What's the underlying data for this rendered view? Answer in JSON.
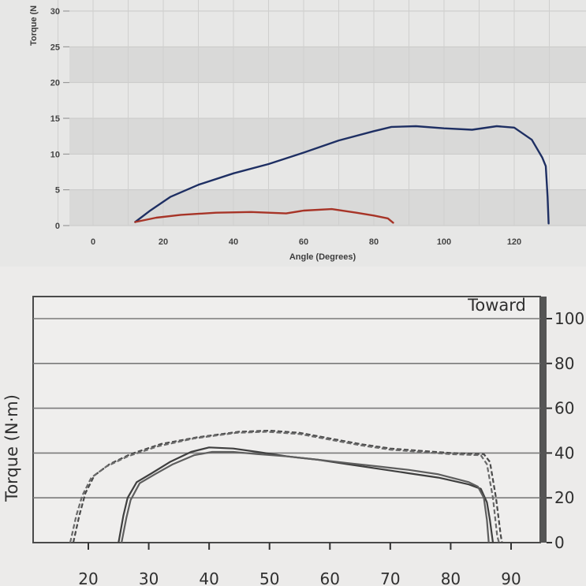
{
  "chart_data": [
    {
      "type": "line",
      "title": "",
      "xlabel": "Angle (Degrees)",
      "ylabel": "Torque (N",
      "xlim": [
        -10,
        132
      ],
      "ylim": [
        0,
        30
      ],
      "x_ticks": [
        "0",
        "20",
        "40",
        "60",
        "80",
        "100",
        "120"
      ],
      "y_ticks": [
        "0",
        "5",
        "10",
        "15",
        "20",
        "25",
        "30"
      ],
      "grid": true,
      "series": [
        {
          "color": "#1e2f63",
          "points": [
            [
              12,
              0.5
            ],
            [
              16,
              2
            ],
            [
              22,
              4
            ],
            [
              30,
              5.7
            ],
            [
              40,
              7.3
            ],
            [
              50,
              8.6
            ],
            [
              60,
              10.2
            ],
            [
              70,
              11.9
            ],
            [
              80,
              13.2
            ],
            [
              85,
              13.8
            ],
            [
              92,
              13.9
            ],
            [
              100,
              13.6
            ],
            [
              108,
              13.4
            ],
            [
              115,
              13.9
            ],
            [
              120,
              13.7
            ],
            [
              125,
              12
            ],
            [
              128,
              9.5
            ],
            [
              129,
              8.3
            ],
            [
              129.5,
              4
            ],
            [
              129.8,
              0.3
            ]
          ]
        },
        {
          "color": "#a73427",
          "points": [
            [
              12,
              0.5
            ],
            [
              18,
              1.1
            ],
            [
              25,
              1.5
            ],
            [
              35,
              1.8
            ],
            [
              45,
              1.9
            ],
            [
              55,
              1.7
            ],
            [
              60,
              2.1
            ],
            [
              68,
              2.3
            ],
            [
              75,
              1.8
            ],
            [
              80,
              1.4
            ],
            [
              84,
              1.0
            ],
            [
              85.5,
              0.4
            ]
          ]
        }
      ]
    },
    {
      "type": "line",
      "title": "",
      "xlabel": "",
      "ylabel": "Torque (N·m)",
      "xlim": [
        12.5,
        94
      ],
      "ylim": [
        0,
        103
      ],
      "x_ticks": [
        "20",
        "30",
        "40",
        "50",
        "60",
        "70",
        "80",
        "90"
      ],
      "y_ticks": [
        "0",
        "20",
        "40",
        "60",
        "80",
        "100"
      ],
      "annotation": "Toward",
      "grid": true,
      "series": [
        {
          "style": "dashed",
          "color": "#4a4a4a",
          "points": [
            [
              17.5,
              0
            ],
            [
              18.5,
              12
            ],
            [
              19.5,
              22
            ],
            [
              21,
              30
            ],
            [
              23.5,
              35
            ],
            [
              27,
              39.5
            ],
            [
              32,
              44
            ],
            [
              38,
              47
            ],
            [
              45,
              49.5
            ],
            [
              50,
              50
            ],
            [
              55,
              49
            ],
            [
              60,
              46.5
            ],
            [
              65,
              44
            ],
            [
              70,
              42
            ],
            [
              75,
              41
            ],
            [
              80,
              40
            ],
            [
              85.5,
              39.5
            ],
            [
              86.5,
              36
            ],
            [
              87.5,
              20
            ],
            [
              88.3,
              3
            ],
            [
              88.5,
              0
            ]
          ]
        },
        {
          "style": "dashed",
          "color": "#6a6a6a",
          "points": [
            [
              17,
              0
            ],
            [
              18,
              12
            ],
            [
              19,
              21
            ],
            [
              20.5,
              29
            ],
            [
              23,
              34
            ],
            [
              26.5,
              38.5
            ],
            [
              31.5,
              43
            ],
            [
              37.5,
              46.5
            ],
            [
              44.5,
              49
            ],
            [
              49.5,
              49.5
            ],
            [
              55,
              48.5
            ],
            [
              60,
              46
            ],
            [
              65,
              43.5
            ],
            [
              70,
              41.5
            ],
            [
              75,
              40.5
            ],
            [
              80,
              39.5
            ],
            [
              85,
              39
            ],
            [
              86,
              35
            ],
            [
              87,
              20
            ],
            [
              87.7,
              3
            ],
            [
              88,
              0
            ]
          ]
        },
        {
          "style": "solid",
          "color": "#3f3f3f",
          "points": [
            [
              25,
              0
            ],
            [
              25.8,
              12
            ],
            [
              26.5,
              20
            ],
            [
              28,
              27
            ],
            [
              30.5,
              31
            ],
            [
              33.5,
              36
            ],
            [
              37,
              40.5
            ],
            [
              40,
              42.5
            ],
            [
              44,
              42
            ],
            [
              48,
              40.5
            ],
            [
              53,
              38.5
            ],
            [
              58,
              37
            ],
            [
              63,
              35
            ],
            [
              68,
              33
            ],
            [
              73,
              31
            ],
            [
              78,
              29
            ],
            [
              83,
              26
            ],
            [
              85,
              24
            ],
            [
              86,
              18
            ],
            [
              86.5,
              10
            ],
            [
              87,
              0
            ]
          ]
        },
        {
          "style": "solid",
          "color": "#5e5e5e",
          "points": [
            [
              25.5,
              0
            ],
            [
              26.3,
              11
            ],
            [
              27,
              19
            ],
            [
              28.5,
              26.5
            ],
            [
              31,
              30.5
            ],
            [
              34,
              35
            ],
            [
              37.5,
              39
            ],
            [
              40.5,
              40.5
            ],
            [
              44,
              40.5
            ],
            [
              48,
              39.5
            ],
            [
              53,
              38.5
            ],
            [
              58,
              37
            ],
            [
              63,
              35.5
            ],
            [
              68,
              34
            ],
            [
              73,
              32.5
            ],
            [
              78,
              30.5
            ],
            [
              83,
              27
            ],
            [
              84.5,
              25
            ],
            [
              85.5,
              20
            ],
            [
              86,
              10
            ],
            [
              86.3,
              0
            ]
          ]
        }
      ]
    }
  ]
}
